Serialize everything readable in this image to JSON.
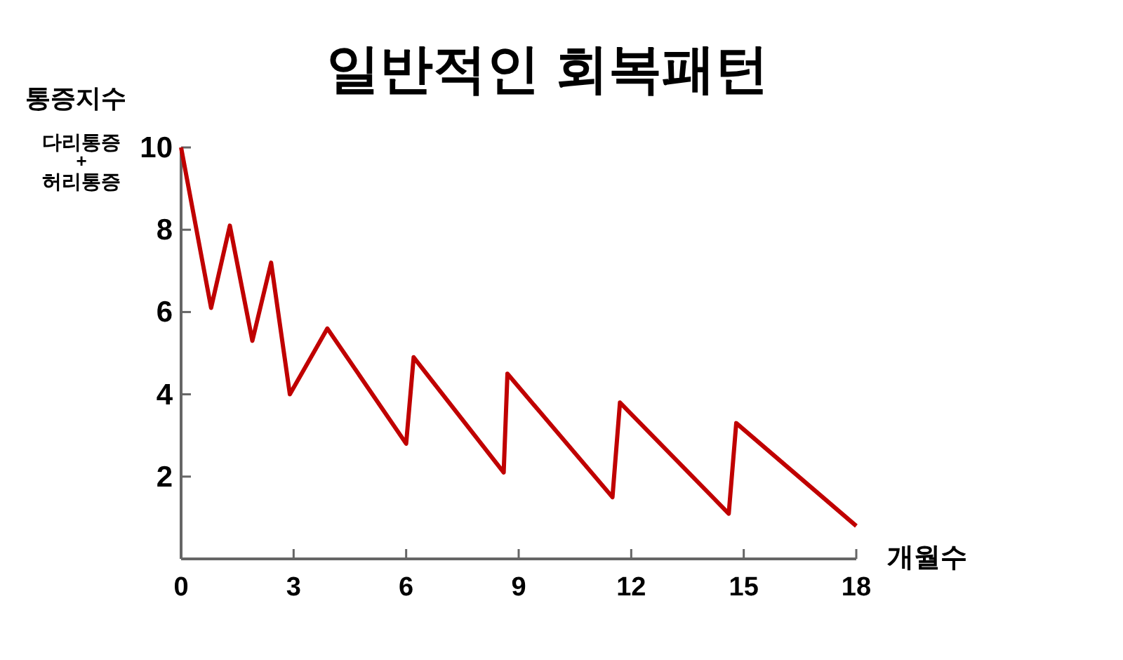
{
  "chart_data": {
    "type": "line",
    "title": "일반적인 회복패턴",
    "ylabel": "통증지수",
    "xlabel": "개월수",
    "annotations": [
      "다리통증\n+\n허리통증"
    ],
    "series": [
      {
        "color": "#c00000",
        "x": [
          0,
          0.8,
          1.3,
          1.9,
          2.4,
          2.9,
          3.9,
          6.0,
          6.2,
          8.6,
          8.7,
          11.5,
          11.7,
          14.6,
          14.8,
          18
        ],
        "values": [
          10,
          6.1,
          8.1,
          5.3,
          7.2,
          4.0,
          5.6,
          2.8,
          4.9,
          2.1,
          4.5,
          1.5,
          3.8,
          1.1,
          3.3,
          0.8
        ]
      }
    ],
    "xlim": [
      0,
      18
    ],
    "xticks": [
      0,
      3,
      6,
      9,
      12,
      15,
      18
    ],
    "ylim": [
      0,
      10
    ],
    "yticks": [
      2,
      4,
      6,
      8,
      10
    ],
    "grid": false,
    "marker": "none",
    "line_style": "solid"
  }
}
